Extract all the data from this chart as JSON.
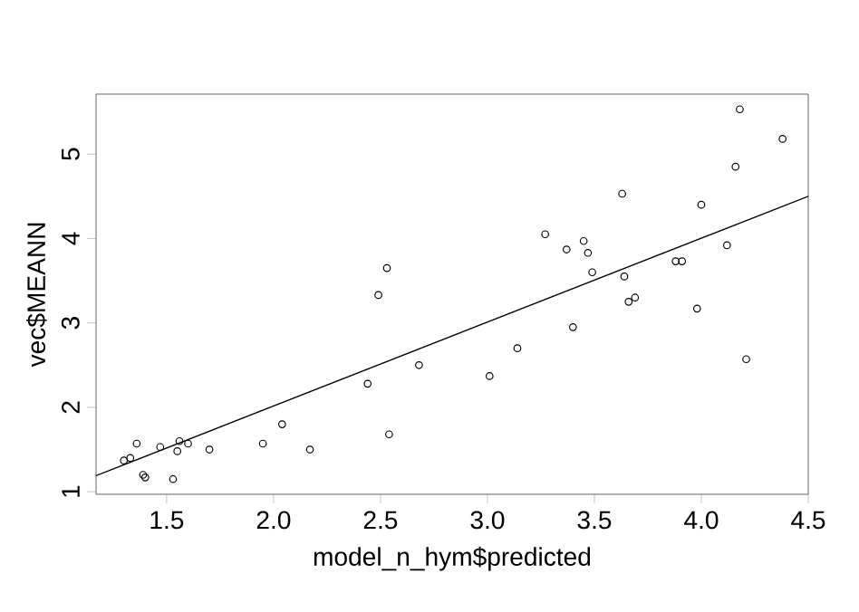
{
  "chart_data": {
    "type": "scatter",
    "xlabel": "model_n_hym$predicted",
    "ylabel": "vec$MEANN",
    "xlim": [
      1.17,
      4.5
    ],
    "ylim": [
      0.97,
      5.71
    ],
    "xticks": [
      1.5,
      {
        "value": 2,
        "label": "2.0"
      },
      2.5,
      {
        "value": 3,
        "label": "3.0"
      },
      3.5,
      {
        "value": 4,
        "label": "4.0"
      },
      4.5
    ],
    "yticks": [
      1,
      2,
      3,
      4,
      5
    ],
    "grid": false,
    "series": [
      {
        "color": "#000000",
        "marker": "circle",
        "x": [
          1.3,
          1.33,
          1.36,
          1.39,
          1.4,
          1.47,
          1.53,
          1.55,
          1.56,
          1.6,
          1.7,
          1.95,
          2.04,
          2.17,
          2.44,
          2.49,
          2.53,
          2.54,
          2.68,
          3.01,
          3.14,
          3.27,
          3.37,
          3.4,
          3.45,
          3.47,
          3.49,
          3.63,
          3.64,
          3.66,
          3.69,
          3.88,
          3.91,
          3.98,
          4.0,
          4.12,
          4.16,
          4.18,
          4.21,
          4.38
        ],
        "values": [
          1.37,
          1.4,
          1.57,
          1.2,
          1.17,
          1.53,
          1.15,
          1.48,
          1.6,
          1.57,
          1.5,
          1.57,
          1.8,
          1.5,
          2.28,
          3.33,
          3.65,
          1.68,
          2.5,
          2.37,
          2.7,
          4.05,
          3.87,
          2.95,
          3.97,
          3.83,
          3.6,
          4.53,
          3.55,
          3.25,
          3.3,
          3.73,
          3.73,
          3.17,
          4.4,
          3.92,
          4.85,
          5.53,
          2.57,
          5.18
        ]
      },
      {
        "type": "line",
        "color": "#000000",
        "marker": "none",
        "x": [
          1.17,
          4.5
        ],
        "values": [
          1.19,
          4.5
        ]
      }
    ]
  }
}
